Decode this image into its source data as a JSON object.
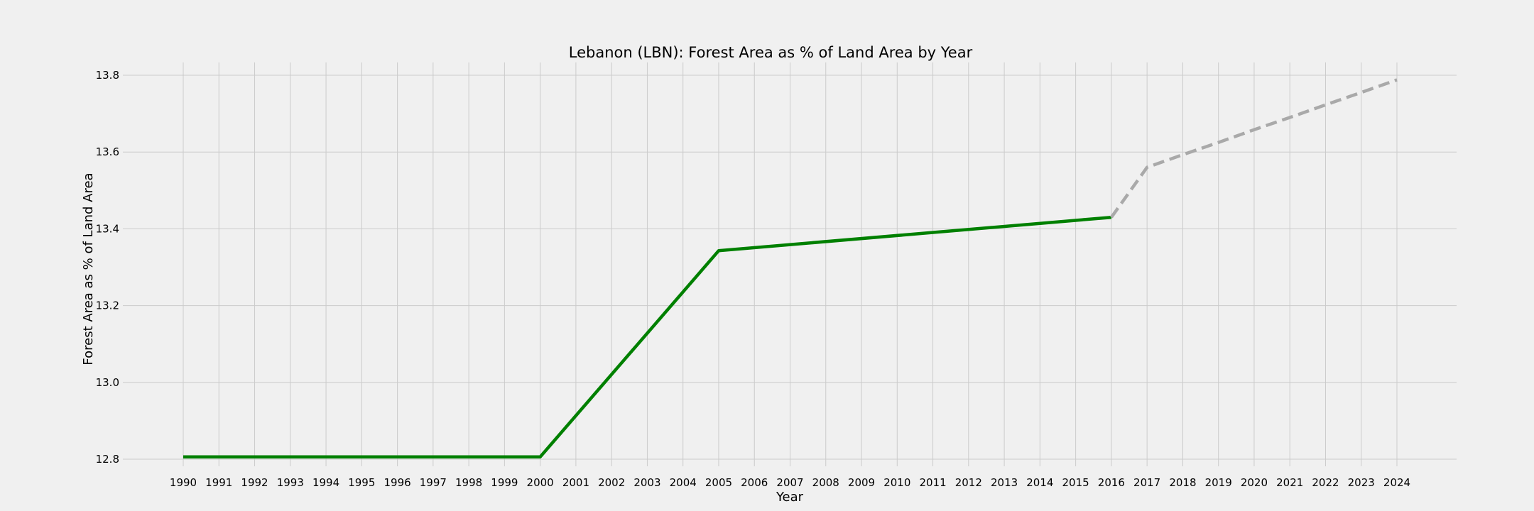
{
  "chart_data": {
    "type": "line",
    "title": "Lebanon (LBN): Forest Area as % of Land Area by Year",
    "xlabel": "Year",
    "ylabel": "Forest Area as % of Land Area",
    "xlim": [
      1990,
      2024
    ],
    "ylim": [
      12.8,
      13.8
    ],
    "grid": true,
    "x_ticks": [
      "1990",
      "1991",
      "1992",
      "1993",
      "1994",
      "1995",
      "1996",
      "1997",
      "1998",
      "1999",
      "2000",
      "2001",
      "2002",
      "2003",
      "2004",
      "2005",
      "2006",
      "2007",
      "2008",
      "2009",
      "2010",
      "2011",
      "2012",
      "2013",
      "2014",
      "2015",
      "2016",
      "2017",
      "2018",
      "2019",
      "2020",
      "2021",
      "2022",
      "2023",
      "2024"
    ],
    "y_ticks": [
      "12.8",
      "13.0",
      "13.2",
      "13.4",
      "13.6",
      "13.8"
    ],
    "series": [
      {
        "style": "solid",
        "color": "#008000",
        "points": [
          {
            "x": 1990,
            "y": 12.806
          },
          {
            "x": 2000,
            "y": 12.806
          },
          {
            "x": 2005,
            "y": 13.343
          },
          {
            "x": 2016,
            "y": 13.43
          }
        ]
      },
      {
        "style": "dashed",
        "color": "#a9a9a9",
        "points": [
          {
            "x": 2016,
            "y": 13.43
          },
          {
            "x": 2017,
            "y": 13.56
          },
          {
            "x": 2018,
            "y": 13.593
          },
          {
            "x": 2019,
            "y": 13.625
          },
          {
            "x": 2020,
            "y": 13.658
          },
          {
            "x": 2021,
            "y": 13.69
          },
          {
            "x": 2022,
            "y": 13.723
          },
          {
            "x": 2023,
            "y": 13.755
          },
          {
            "x": 2024,
            "y": 13.788
          }
        ]
      }
    ]
  }
}
